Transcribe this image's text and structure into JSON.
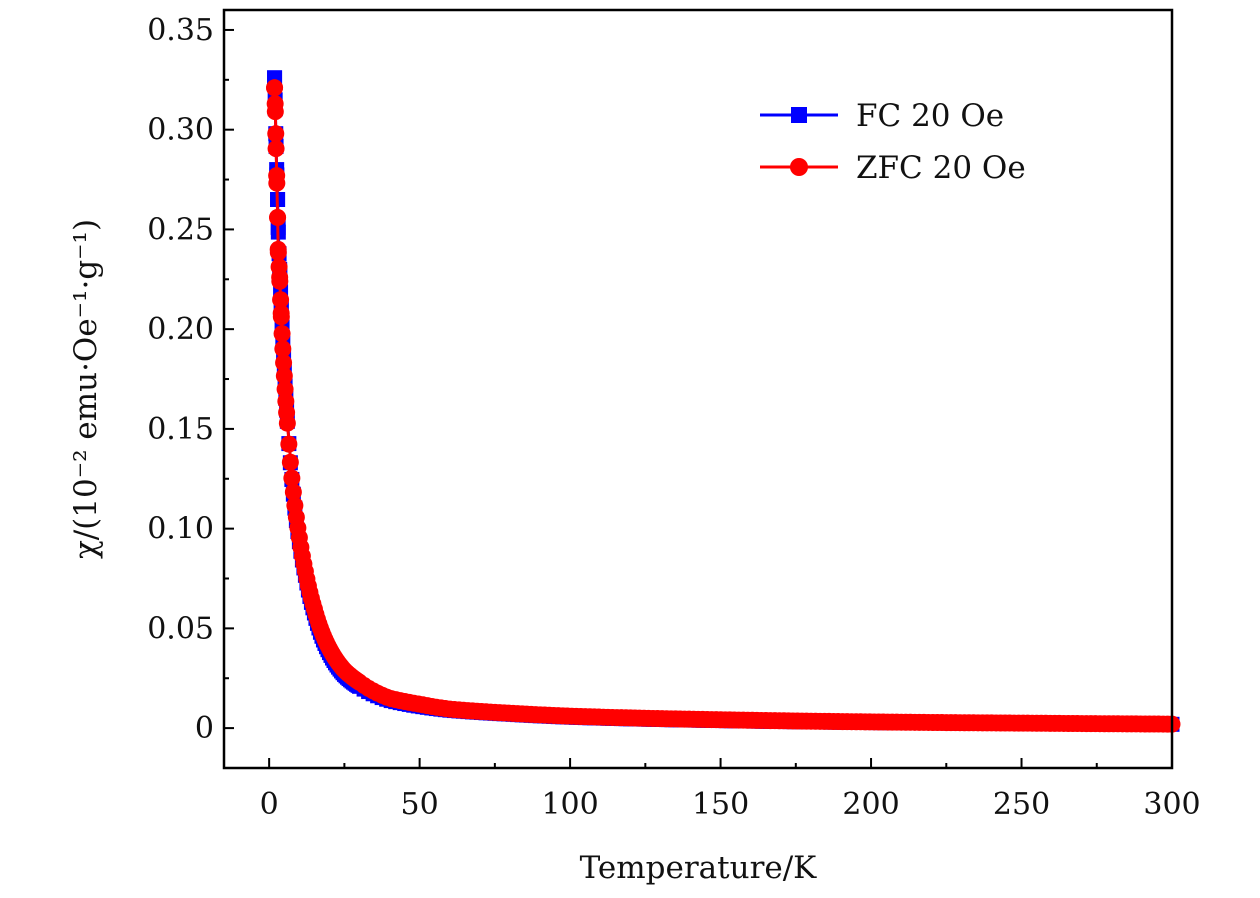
{
  "chart_data": {
    "type": "scatter",
    "title": "",
    "xlabel": "Temperature/K",
    "ylabel": "χ/(10⁻² emu·Oe⁻¹·g⁻¹)",
    "xlim": [
      -15,
      300
    ],
    "ylim": [
      -0.02,
      0.36
    ],
    "xticks": [
      0,
      50,
      100,
      150,
      200,
      250,
      300
    ],
    "xtick_labels": [
      "0",
      "50",
      "100",
      "150",
      "200",
      "250",
      "300"
    ],
    "yticks": [
      0,
      0.05,
      0.1,
      0.15,
      0.2,
      0.25,
      0.3,
      0.35
    ],
    "ytick_labels": [
      "0",
      "0.05",
      "0.10",
      "0.15",
      "0.20",
      "0.25",
      "0.30",
      "0.35"
    ],
    "grid": false,
    "legend_position": "top-right",
    "series": [
      {
        "name": "FC 20 Oe",
        "color": "#0000ff",
        "marker": "square",
        "x": [
          1.8,
          2.0,
          2.2,
          2.5,
          2.8,
          3.0,
          3.5,
          4,
          5,
          6,
          8,
          10,
          12,
          15,
          20,
          25,
          30,
          40,
          50,
          60,
          80,
          100,
          150,
          200,
          250,
          300
        ],
        "y": [
          0.326,
          0.315,
          0.298,
          0.28,
          0.265,
          0.251,
          0.23,
          0.212,
          0.18,
          0.155,
          0.118,
          0.094,
          0.077,
          0.058,
          0.038,
          0.027,
          0.021,
          0.014,
          0.011,
          0.009,
          0.007,
          0.0055,
          0.0038,
          0.0028,
          0.0023,
          0.0019
        ]
      },
      {
        "name": "ZFC 20 Oe",
        "color": "#ff0000",
        "marker": "circle",
        "x": [
          1.8,
          2.0,
          2.2,
          2.5,
          2.8,
          3.0,
          3.5,
          4,
          5,
          6,
          8,
          10,
          12,
          15,
          20,
          25,
          30,
          40,
          50,
          60,
          80,
          100,
          150,
          200,
          250,
          300
        ],
        "y": [
          0.321,
          0.313,
          0.298,
          0.277,
          0.256,
          0.24,
          0.226,
          0.208,
          0.178,
          0.154,
          0.119,
          0.096,
          0.079,
          0.06,
          0.04,
          0.029,
          0.023,
          0.015,
          0.012,
          0.0095,
          0.0075,
          0.006,
          0.0042,
          0.0031,
          0.0025,
          0.002
        ]
      }
    ]
  }
}
